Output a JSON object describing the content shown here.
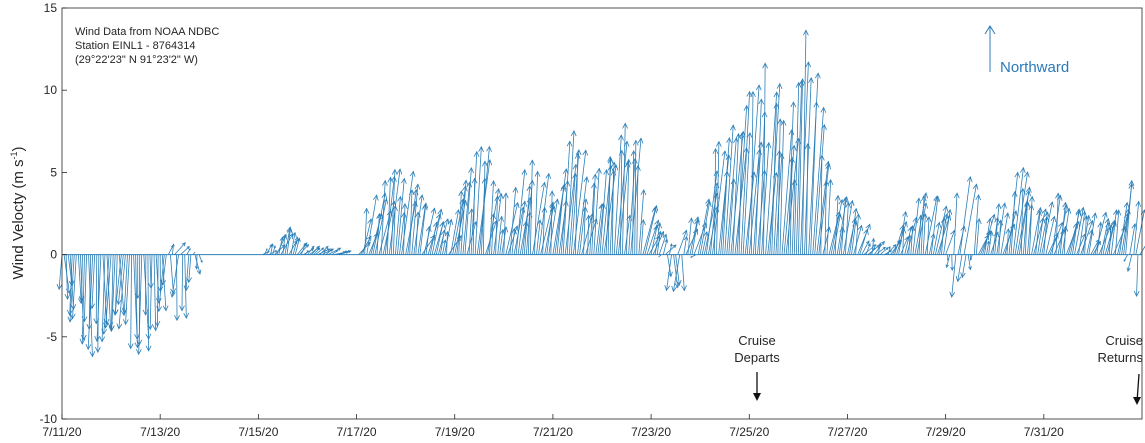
{
  "chart_data": {
    "type": "quiver",
    "ylabel": "Wind Velocty (m s",
    "ylabel_sup": "-1",
    "ylabel_end": ")",
    "ylim": [
      -10,
      15
    ],
    "yticks": [
      -10,
      -5,
      0,
      5,
      10,
      15
    ],
    "xticks": [
      "7/11/20",
      "7/13/20",
      "7/15/20",
      "7/17/20",
      "7/19/20",
      "7/21/20",
      "7/23/20",
      "7/25/20",
      "7/27/20",
      "7/29/20",
      "7/31/20"
    ],
    "x_start": "7/11/20",
    "x_end": "8/2/20",
    "grid": false,
    "station_info": [
      "Wind Data from NOAA NDBC",
      "Station EINL1 - 8764314",
      "(29°22'23\" N 91°23'2\" W)"
    ],
    "legend_label": "Northward",
    "annotations": [
      {
        "text": [
          "Cruise",
          "Departs"
        ],
        "date": "7/25/20"
      },
      {
        "text": [
          "Cruise",
          "Returns"
        ],
        "date": "8/2/20"
      }
    ],
    "envelope_upper_v": [
      [
        "7/11/20",
        0
      ],
      [
        "7/13/20",
        0
      ],
      [
        "7/13/20 6:00",
        0.9
      ],
      [
        "7/13/20 20:00",
        0
      ],
      [
        "7/15/20",
        0
      ],
      [
        "7/15/20 12:00",
        1.9
      ],
      [
        "7/15/20 20:00",
        0.8
      ],
      [
        "7/17/20",
        0
      ],
      [
        "7/17/20 4:00",
        3.6
      ],
      [
        "7/17/20 21:00",
        6.5
      ],
      [
        "7/18/20 8:00",
        3.2
      ],
      [
        "7/18/20 20:00",
        2.2
      ],
      [
        "7/19/20 3:00",
        5.0
      ],
      [
        "7/19/20 12:00",
        7.3
      ],
      [
        "7/19/20 22:00",
        3.5
      ],
      [
        "7/20/20 10:00",
        6.7
      ],
      [
        "7/20/20 21:00",
        4.2
      ],
      [
        "7/21/20 6:00",
        8.0
      ],
      [
        "7/21/20 16:00",
        4.5
      ],
      [
        "7/22/20 4:00",
        7.0
      ],
      [
        "7/22/20 14:00",
        9.0
      ],
      [
        "7/22/20 22:00",
        3.0
      ],
      [
        "7/23/20 8:00",
        0.5
      ],
      [
        "7/23/20 20:00",
        3.0
      ],
      [
        "7/24/20 8:00",
        7.0
      ],
      [
        "7/24/20 20:00",
        10.0
      ],
      [
        "7/25/20 6:00",
        12.5
      ],
      [
        "7/25/20 16:00",
        8.0
      ],
      [
        "7/26/20 2:00",
        14.0
      ],
      [
        "7/26/20 10:00",
        6.5
      ],
      [
        "7/26/20 20:00",
        5.0
      ],
      [
        "7/27/20 6:00",
        2.0
      ],
      [
        "7/27/20 18:00",
        0.3
      ],
      [
        "7/28/20 6:00",
        4.5
      ],
      [
        "7/28/20 20:00",
        3.5
      ],
      [
        "7/29/20 8:00",
        5.0
      ],
      [
        "7/29/20 20:00",
        2.5
      ],
      [
        "7/30/20 8:00",
        5.5
      ],
      [
        "7/30/20 20:00",
        3.0
      ],
      [
        "7/31/20 8:00",
        4.0
      ],
      [
        "7/31/20 20:00",
        2.8
      ],
      [
        "8/1/20 8:00",
        2.5
      ],
      [
        "8/1/20 16:00",
        5.0
      ],
      [
        "8/1/20 22:00",
        2.5
      ],
      [
        "8/2/20",
        0.5
      ]
    ],
    "envelope_lower_v": [
      [
        "7/11/20",
        -2.5
      ],
      [
        "7/11/20 12:00",
        -6.5
      ],
      [
        "7/12/20 6:00",
        -5.0
      ],
      [
        "7/12/20 14:00",
        -7.5
      ],
      [
        "7/13/20",
        -4.0
      ],
      [
        "7/13/20 12:00",
        -4.0
      ],
      [
        "7/13/20 20:00",
        0
      ],
      [
        "7/23/20 4:00",
        0
      ],
      [
        "7/23/20 12:00",
        -3.2
      ],
      [
        "7/23/20 20:00",
        -0.5
      ],
      [
        "7/24/20",
        0
      ],
      [
        "7/29/20",
        0
      ],
      [
        "7/29/20 6:00",
        -3.3
      ],
      [
        "7/29/20 14:00",
        0
      ],
      [
        "8/1/20 16:00",
        0
      ],
      [
        "8/2/20",
        -3.5
      ]
    ]
  },
  "colors": {
    "arrow": "#2c7fb8",
    "legend_text": "#2a7ab9",
    "axis": "#262626"
  }
}
